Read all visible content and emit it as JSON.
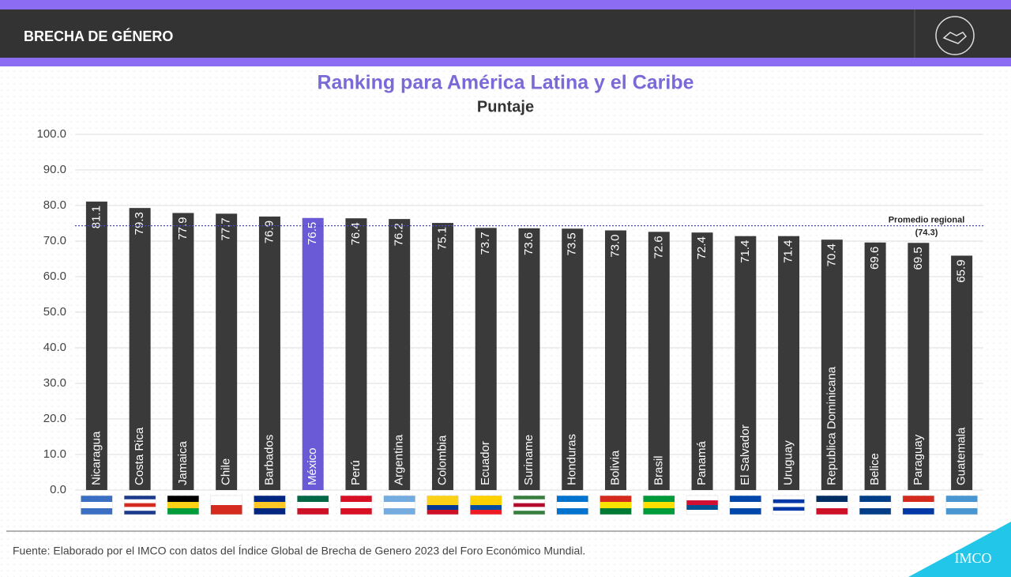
{
  "header": {
    "title": "BRECHA DE GÉNERO"
  },
  "chart_data": {
    "type": "bar",
    "title": "Ranking para América Latina y el Caribe",
    "subtitle": "Puntaje",
    "categories": [
      "Nicaragua",
      "Costa Rica",
      "Jamaica",
      "Chile",
      "Barbados",
      "México",
      "Perú",
      "Argentina",
      "Colombia",
      "Ecuador",
      "Suriname",
      "Honduras",
      "Bolivia",
      "Brasil",
      "Panamá",
      "El Salvador",
      "Uruguay",
      "Republica Dominicana",
      "Belice",
      "Paraguay",
      "Guatemala"
    ],
    "values": [
      81.1,
      79.3,
      77.9,
      77.7,
      76.9,
      76.5,
      76.4,
      76.2,
      75.1,
      73.7,
      73.6,
      73.5,
      73.0,
      72.6,
      72.4,
      71.4,
      71.4,
      70.4,
      69.6,
      69.5,
      65.9
    ],
    "value_labels": [
      "81.1",
      "79.3",
      "77.9",
      "77.7",
      "76.9",
      "76.5",
      "76.4",
      "76.2",
      "75.1",
      "73.7",
      "73.6",
      "73.5",
      "73.0",
      "72.6",
      "72.4",
      "71.4",
      "71.4",
      "70.4",
      "69.6",
      "69.5",
      "65.9"
    ],
    "colors": [
      "#3a3a3a",
      "#3a3a3a",
      "#3a3a3a",
      "#3a3a3a",
      "#3a3a3a",
      "#6a5ad6",
      "#3a3a3a",
      "#3a3a3a",
      "#3a3a3a",
      "#3a3a3a",
      "#3a3a3a",
      "#3a3a3a",
      "#3a3a3a",
      "#3a3a3a",
      "#3a3a3a",
      "#3a3a3a",
      "#3a3a3a",
      "#3a3a3a",
      "#3a3a3a",
      "#3a3a3a",
      "#3a3a3a"
    ],
    "ylim": [
      0,
      100
    ],
    "yticks": [
      {
        "value": 0,
        "label": "0.0"
      },
      {
        "value": 10,
        "label": "10.0"
      },
      {
        "value": 20,
        "label": "20.0"
      },
      {
        "value": 30,
        "label": "30.0"
      },
      {
        "value": 40,
        "label": "40.0"
      },
      {
        "value": 50,
        "label": "50.0"
      },
      {
        "value": 60,
        "label": "60.0"
      },
      {
        "value": 70,
        "label": "70.0"
      },
      {
        "value": 80,
        "label": "80.0"
      },
      {
        "value": 90,
        "label": "90.0"
      },
      {
        "value": 100,
        "label": "100.0"
      }
    ],
    "grid": true,
    "reference_line": {
      "label": "Promedio regional",
      "value": 74.3,
      "value_label": "(74.3)",
      "color": "#4b4bc8"
    }
  },
  "footer": {
    "source": "Fuente: Elaborado por el IMCO con datos del Índice Global de Brecha de Genero 2023 del Foro Económico Mundial.",
    "logo": "IMCO"
  }
}
